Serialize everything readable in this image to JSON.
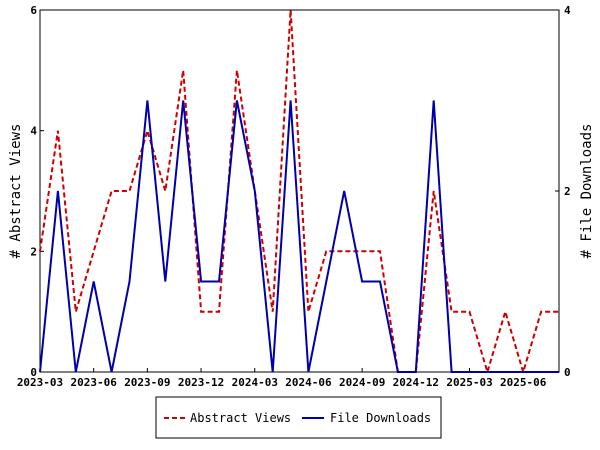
{
  "chart_data": {
    "type": "line",
    "x": [
      "2023-03",
      "2023-04",
      "2023-05",
      "2023-06",
      "2023-07",
      "2023-08",
      "2023-09",
      "2023-10",
      "2023-11",
      "2023-12",
      "2024-01",
      "2024-02",
      "2024-03",
      "2024-04",
      "2024-05",
      "2024-06",
      "2024-07",
      "2024-08",
      "2024-09",
      "2024-10",
      "2024-11",
      "2024-12",
      "2025-01",
      "2025-02",
      "2025-03",
      "2025-04",
      "2025-05",
      "2025-06",
      "2025-07",
      "2025-08"
    ],
    "x_tick_labels": [
      "2023-03",
      "2023-06",
      "2023-09",
      "2023-12",
      "2024-03",
      "2024-06",
      "2024-09",
      "2024-12",
      "2025-03",
      "2025-06"
    ],
    "series": [
      {
        "name": "Abstract Views",
        "axis": "left",
        "color": "#cc0000",
        "style": "dashed",
        "values": [
          2,
          4,
          1,
          2,
          3,
          3,
          4,
          3,
          5,
          1,
          1,
          5,
          3,
          1,
          6,
          1,
          2,
          2,
          2,
          2,
          0,
          0,
          3,
          1,
          1,
          0,
          1,
          0,
          1,
          1
        ]
      },
      {
        "name": "File Downloads",
        "axis": "right",
        "color": "#0000aa",
        "style": "solid",
        "values": [
          0,
          2,
          0,
          1,
          0,
          1,
          3,
          1,
          3,
          1,
          1,
          3,
          2,
          0,
          3,
          0,
          1,
          2,
          1,
          1,
          0,
          0,
          3,
          0,
          0,
          0,
          0,
          0,
          0,
          0
        ]
      }
    ],
    "ylabel_left": "# Abstract Views",
    "ylabel_right": "# File Downloads",
    "ylim_left": [
      0,
      6
    ],
    "yticks_left": [
      0,
      2,
      4,
      6
    ],
    "ylim_right": [
      0,
      4
    ],
    "yticks_right": [
      0,
      2,
      4
    ],
    "grid": false,
    "legend_position": "bottom-center"
  }
}
